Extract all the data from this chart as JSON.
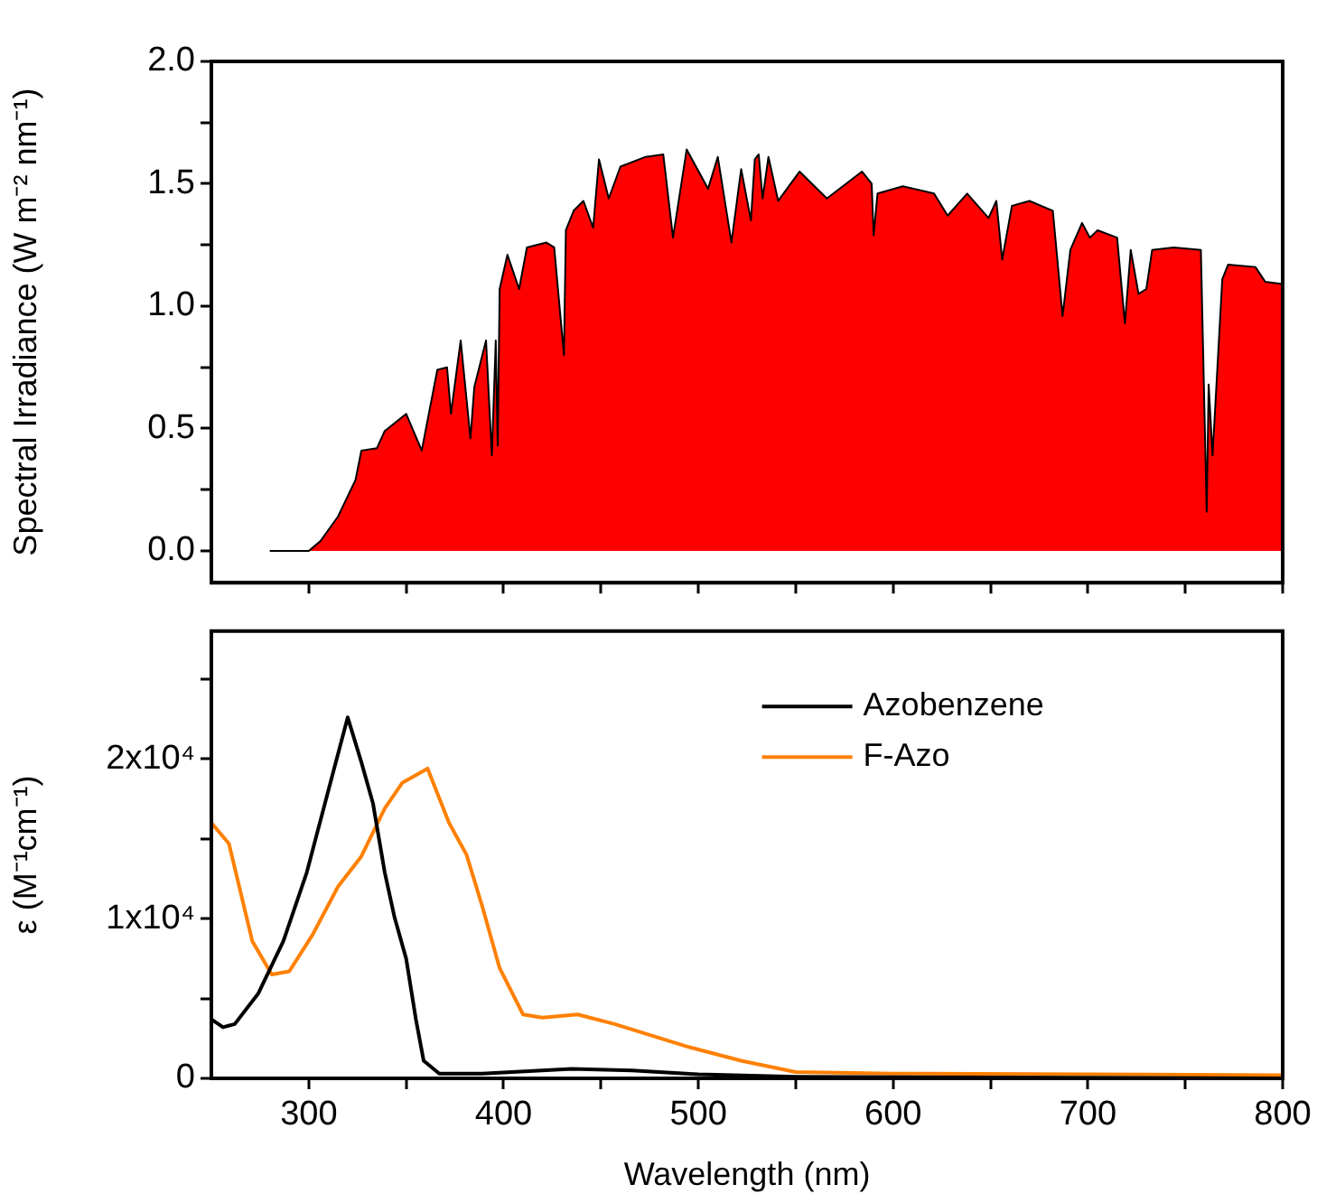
{
  "chart_data": [
    {
      "type": "area",
      "ylabel": "Spectral Irradiance (W m⁻² nm⁻¹)",
      "tick_labels": "y",
      "xlim": [
        250,
        800
      ],
      "ylim": [
        -0.13,
        2.0
      ],
      "xticks": [
        {
          "value": 300,
          "label": null
        },
        {
          "value": 350,
          "label": null
        },
        {
          "value": 400,
          "label": null
        },
        {
          "value": 450,
          "label": null
        },
        {
          "value": 500,
          "label": null
        },
        {
          "value": 550,
          "label": null
        },
        {
          "value": 600,
          "label": null
        },
        {
          "value": 650,
          "label": null
        },
        {
          "value": 700,
          "label": null
        },
        {
          "value": 750,
          "label": null
        },
        {
          "value": 800,
          "label": null
        }
      ],
      "yticks": [
        {
          "value": 0,
          "label": "0.0"
        },
        {
          "value": 0.25,
          "label": null
        },
        0.5,
        {
          "value": 0.75,
          "label": null
        },
        {
          "value": 1,
          "label": "1.0"
        },
        {
          "value": 1.25,
          "label": null
        },
        1.5,
        {
          "value": 1.75,
          "label": null
        },
        {
          "value": 2,
          "label": "2.0"
        }
      ],
      "series": [
        {
          "color": "#ff0000",
          "x": [
            280,
            290,
            300,
            306,
            315,
            324,
            327,
            335,
            339,
            350,
            358,
            366,
            371,
            373,
            378,
            383,
            385,
            391,
            394,
            396,
            397,
            398,
            402,
            408,
            412,
            422,
            426,
            431,
            432,
            436,
            441,
            446,
            449,
            454,
            460,
            473,
            482,
            487,
            494,
            505,
            510,
            517,
            522,
            527,
            529,
            531,
            533,
            536,
            541,
            552,
            566,
            584,
            589,
            590,
            592,
            605,
            621,
            628,
            638,
            649,
            653,
            656,
            661,
            670,
            682,
            687,
            691,
            697,
            701,
            705,
            715,
            719,
            722,
            726,
            730,
            733,
            744,
            758,
            761,
            762,
            764,
            769,
            772,
            786,
            791,
            800
          ],
          "values": [
            0,
            0,
            0,
            0.04,
            0.14,
            0.29,
            0.41,
            0.42,
            0.49,
            0.56,
            0.41,
            0.74,
            0.75,
            0.56,
            0.86,
            0.46,
            0.67,
            0.86,
            0.39,
            0.86,
            0.43,
            1.07,
            1.21,
            1.07,
            1.24,
            1.26,
            1.24,
            0.8,
            1.31,
            1.39,
            1.43,
            1.32,
            1.6,
            1.44,
            1.57,
            1.61,
            1.62,
            1.28,
            1.64,
            1.48,
            1.61,
            1.26,
            1.56,
            1.35,
            1.6,
            1.62,
            1.44,
            1.61,
            1.43,
            1.55,
            1.44,
            1.55,
            1.5,
            1.29,
            1.46,
            1.49,
            1.46,
            1.37,
            1.46,
            1.36,
            1.43,
            1.19,
            1.41,
            1.43,
            1.39,
            0.96,
            1.23,
            1.34,
            1.28,
            1.31,
            1.28,
            0.93,
            1.23,
            1.05,
            1.07,
            1.23,
            1.24,
            1.23,
            0.16,
            0.68,
            0.39,
            1.11,
            1.17,
            1.16,
            1.1,
            1.09
          ]
        }
      ]
    },
    {
      "type": "line",
      "xlabel": "Wavelength (nm)",
      "ylabel": "ε (M⁻¹cm⁻¹)",
      "legend": "top right",
      "xlim": [
        250,
        800
      ],
      "ylim": [
        0,
        28000
      ],
      "xticks": [
        300,
        {
          "value": 350,
          "label": null
        },
        400,
        {
          "value": 450,
          "label": null
        },
        500,
        {
          "value": 550,
          "label": null
        },
        600,
        {
          "value": 650,
          "label": null
        },
        700,
        {
          "value": 750,
          "label": null
        },
        800
      ],
      "yticks": [
        0,
        {
          "value": 5000,
          "label": null
        },
        {
          "value": 10000,
          "label": "1x10⁴"
        },
        {
          "value": 15000,
          "label": null
        },
        {
          "value": 20000,
          "label": "2x10⁴"
        },
        {
          "value": 25000,
          "label": null
        }
      ],
      "series": [
        {
          "name": "Azobenzene",
          "color": "#000000",
          "x": [
            250,
            256,
            262,
            274,
            287,
            299,
            310,
            320,
            327,
            333,
            339,
            344,
            350,
            355,
            359,
            367,
            389,
            435,
            466,
            500,
            550,
            800
          ],
          "values": [
            3700,
            3200,
            3400,
            5300,
            8600,
            12900,
            18000,
            22600,
            19800,
            17200,
            12900,
            10100,
            7500,
            3700,
            1100,
            300,
            300,
            600,
            500,
            250,
            100,
            0
          ]
        },
        {
          "name": "F-Azo",
          "color": "#ff8000",
          "x": [
            250,
            259,
            271,
            281,
            290,
            302,
            315,
            327,
            339,
            348,
            361,
            372,
            381,
            389,
            398,
            410,
            420,
            438,
            457,
            494,
            522,
            550,
            600,
            800
          ],
          "values": [
            16000,
            14700,
            8600,
            6500,
            6700,
            9000,
            12000,
            13900,
            16900,
            18500,
            19400,
            16000,
            14000,
            10800,
            6900,
            4000,
            3800,
            4000,
            3400,
            2000,
            1100,
            400,
            300,
            200
          ]
        }
      ]
    }
  ]
}
